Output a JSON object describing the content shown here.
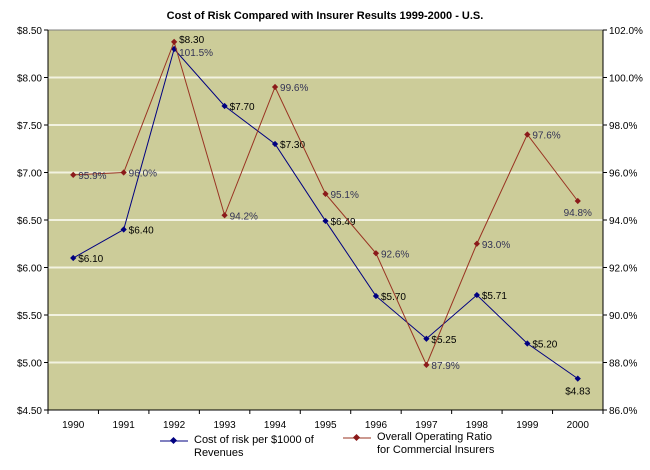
{
  "chart_data": {
    "type": "line",
    "title": "Cost of Risk Compared with Insurer Results 1999-2000 - U.S.",
    "categories": [
      "1990",
      "1991",
      "1992",
      "1993",
      "1994",
      "1995",
      "1996",
      "1997",
      "1998",
      "1999",
      "2000"
    ],
    "y_left": {
      "min": 4.5,
      "max": 8.5,
      "step": 0.5,
      "ticks": [
        "$4.50",
        "$5.00",
        "$5.50",
        "$6.00",
        "$6.50",
        "$7.00",
        "$7.50",
        "$8.00",
        "$8.50"
      ]
    },
    "y_right": {
      "min": 86,
      "max": 102,
      "step": 2,
      "ticks": [
        "86.0%",
        "88.0%",
        "90.0%",
        "92.0%",
        "94.0%",
        "96.0%",
        "98.0%",
        "100.0%",
        "102.0%"
      ]
    },
    "grid": true,
    "legend_position": "bottom",
    "series": [
      {
        "name": "Cost of risk per $1000 of Revenues",
        "axis": "left",
        "color": "#000080",
        "values": [
          6.1,
          6.4,
          8.3,
          7.7,
          7.3,
          6.49,
          5.7,
          5.25,
          5.71,
          5.2,
          4.83
        ],
        "labels": [
          "$6.10",
          "$6.40",
          "$8.30",
          "$7.70",
          "$7.30",
          "$6.49",
          "$5.70",
          "$5.25",
          "$5.71",
          "$5.20",
          "$4.83"
        ]
      },
      {
        "name": "Overall Operating Ratio for Commercial Insurers",
        "axis": "right",
        "color": "#993322",
        "values": [
          95.9,
          96.0,
          101.5,
          94.2,
          99.6,
          95.1,
          92.6,
          87.9,
          93.0,
          97.6,
          94.8
        ],
        "labels": [
          "95.9%",
          "96.0%",
          "101.5%",
          "94.2%",
          "99.6%",
          "95.1%",
          "92.6%",
          "87.9%",
          "93.0%",
          "97.6%",
          "94.8%"
        ]
      }
    ]
  },
  "legend": {
    "s1_line1": "Cost of risk per $1000 of",
    "s1_line2": "Revenues",
    "s2_line1": "Overall Operating Ratio",
    "s2_line2": "for Commercial Insurers"
  }
}
